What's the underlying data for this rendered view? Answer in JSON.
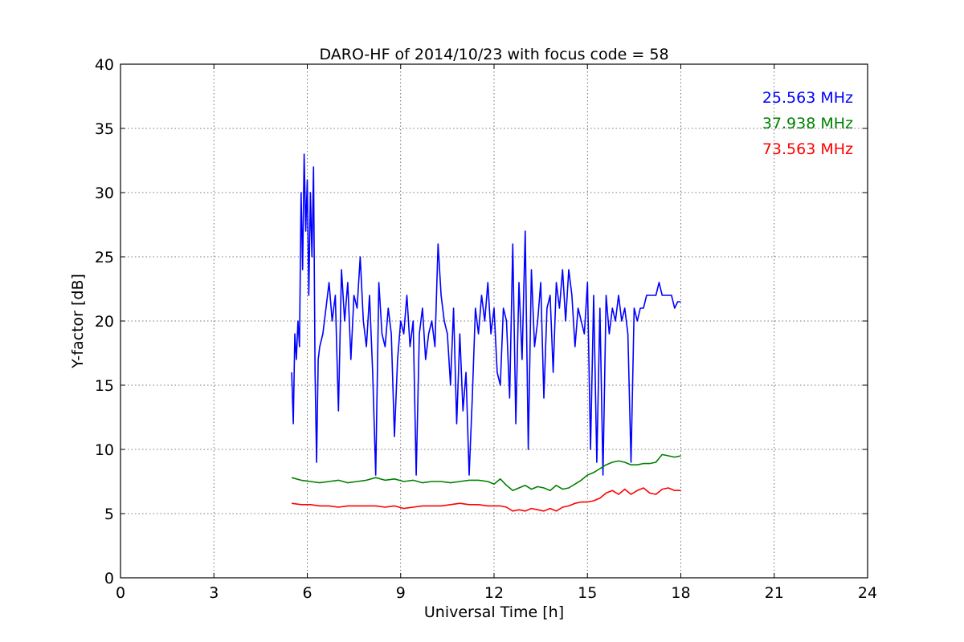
{
  "chart_data": {
    "type": "line",
    "title": "DARO-HF of 2014/10/23 with focus code = 58",
    "xlabel": "Universal Time [h]",
    "ylabel": "Y-factor [dB]",
    "xlim": [
      0,
      24
    ],
    "ylim": [
      0,
      40
    ],
    "xticks": [
      0,
      3,
      6,
      9,
      12,
      15,
      18,
      21,
      24
    ],
    "yticks": [
      0,
      5,
      10,
      15,
      20,
      25,
      30,
      35,
      40
    ],
    "grid": true,
    "legend_position": "top-right",
    "series": [
      {
        "name": "25.563 MHz",
        "color": "#0000ff",
        "x": [
          5.5,
          5.55,
          5.6,
          5.65,
          5.7,
          5.75,
          5.8,
          5.85,
          5.9,
          5.95,
          6.0,
          6.05,
          6.1,
          6.15,
          6.2,
          6.25,
          6.3,
          6.35,
          6.4,
          6.5,
          6.6,
          6.7,
          6.8,
          6.9,
          7.0,
          7.1,
          7.2,
          7.3,
          7.4,
          7.5,
          7.6,
          7.7,
          7.8,
          7.9,
          8.0,
          8.1,
          8.2,
          8.3,
          8.4,
          8.5,
          8.6,
          8.7,
          8.8,
          8.9,
          9.0,
          9.1,
          9.2,
          9.3,
          9.4,
          9.5,
          9.6,
          9.7,
          9.8,
          9.9,
          10.0,
          10.1,
          10.2,
          10.3,
          10.4,
          10.5,
          10.6,
          10.7,
          10.8,
          10.9,
          11.0,
          11.1,
          11.2,
          11.3,
          11.4,
          11.5,
          11.6,
          11.7,
          11.8,
          11.9,
          12.0,
          12.1,
          12.2,
          12.3,
          12.4,
          12.5,
          12.6,
          12.7,
          12.8,
          12.9,
          13.0,
          13.1,
          13.2,
          13.3,
          13.4,
          13.5,
          13.6,
          13.7,
          13.8,
          13.9,
          14.0,
          14.1,
          14.2,
          14.3,
          14.4,
          14.5,
          14.6,
          14.7,
          14.8,
          14.9,
          15.0,
          15.1,
          15.2,
          15.3,
          15.4,
          15.5,
          15.6,
          15.7,
          15.8,
          15.9,
          16.0,
          16.1,
          16.2,
          16.3,
          16.4,
          16.5,
          16.6,
          16.7,
          16.8,
          16.9,
          17.0,
          17.1,
          17.2,
          17.3,
          17.4,
          17.5,
          17.6,
          17.7,
          17.8,
          17.9,
          18.0
        ],
        "values": [
          16,
          12,
          19,
          17,
          20,
          18,
          30,
          24,
          33,
          27,
          31,
          22,
          30,
          25,
          32,
          16,
          9,
          17,
          18,
          19,
          21,
          23,
          20,
          22,
          13,
          24,
          20,
          23,
          17,
          22,
          21,
          25,
          20,
          18,
          22,
          16,
          8,
          23,
          19,
          18,
          21,
          19,
          11,
          17,
          20,
          19,
          22,
          18,
          20,
          8,
          19,
          21,
          17,
          19,
          20,
          18,
          26,
          22,
          20,
          19,
          15,
          21,
          12,
          19,
          13,
          16,
          8,
          14,
          21,
          19,
          22,
          20,
          23,
          19,
          21,
          16,
          15,
          21,
          20,
          14,
          26,
          12,
          23,
          17,
          27,
          10,
          24,
          18,
          20,
          23,
          14,
          21,
          22,
          16,
          23,
          21,
          24,
          20,
          24,
          22,
          18,
          21,
          20,
          19,
          23,
          10,
          22,
          9,
          21,
          8,
          22,
          19,
          21,
          20,
          22,
          20,
          21,
          19,
          9,
          21,
          20,
          21,
          21,
          22,
          22,
          22,
          22,
          23,
          22,
          22,
          22,
          22,
          21,
          21.5,
          21.5
        ]
      },
      {
        "name": "37.938 MHz",
        "color": "#008000",
        "x": [
          5.5,
          5.8,
          6.1,
          6.4,
          6.7,
          7.0,
          7.3,
          7.6,
          7.9,
          8.2,
          8.5,
          8.8,
          9.1,
          9.4,
          9.7,
          10.0,
          10.3,
          10.6,
          10.9,
          11.2,
          11.5,
          11.8,
          12.0,
          12.2,
          12.4,
          12.6,
          12.8,
          13.0,
          13.2,
          13.4,
          13.6,
          13.8,
          14.0,
          14.2,
          14.4,
          14.6,
          14.8,
          15.0,
          15.2,
          15.4,
          15.6,
          15.8,
          16.0,
          16.2,
          16.4,
          16.6,
          16.8,
          17.0,
          17.2,
          17.4,
          17.6,
          17.8,
          18.0
        ],
        "values": [
          7.8,
          7.6,
          7.5,
          7.4,
          7.5,
          7.6,
          7.4,
          7.5,
          7.6,
          7.8,
          7.6,
          7.7,
          7.5,
          7.6,
          7.4,
          7.5,
          7.5,
          7.4,
          7.5,
          7.6,
          7.6,
          7.5,
          7.3,
          7.7,
          7.2,
          6.8,
          7.0,
          7.2,
          6.9,
          7.1,
          7.0,
          6.8,
          7.2,
          6.9,
          7.0,
          7.3,
          7.6,
          8.0,
          8.2,
          8.5,
          8.8,
          9.0,
          9.1,
          9.0,
          8.8,
          8.8,
          8.9,
          8.9,
          9.0,
          9.6,
          9.5,
          9.4,
          9.5
        ]
      },
      {
        "name": "73.563 MHz",
        "color": "#ff0000",
        "x": [
          5.5,
          5.8,
          6.1,
          6.4,
          6.7,
          7.0,
          7.3,
          7.6,
          7.9,
          8.2,
          8.5,
          8.8,
          9.1,
          9.4,
          9.7,
          10.0,
          10.3,
          10.6,
          10.9,
          11.2,
          11.5,
          11.8,
          12.0,
          12.2,
          12.4,
          12.6,
          12.8,
          13.0,
          13.2,
          13.4,
          13.6,
          13.8,
          14.0,
          14.2,
          14.4,
          14.6,
          14.8,
          15.0,
          15.2,
          15.4,
          15.6,
          15.8,
          16.0,
          16.2,
          16.4,
          16.6,
          16.8,
          17.0,
          17.2,
          17.4,
          17.6,
          17.8,
          18.0
        ],
        "values": [
          5.8,
          5.7,
          5.7,
          5.6,
          5.6,
          5.5,
          5.6,
          5.6,
          5.6,
          5.6,
          5.5,
          5.6,
          5.4,
          5.5,
          5.6,
          5.6,
          5.6,
          5.7,
          5.8,
          5.7,
          5.7,
          5.6,
          5.6,
          5.6,
          5.5,
          5.2,
          5.3,
          5.2,
          5.4,
          5.3,
          5.2,
          5.4,
          5.2,
          5.5,
          5.6,
          5.8,
          5.9,
          5.9,
          6.0,
          6.2,
          6.6,
          6.8,
          6.5,
          6.9,
          6.5,
          6.8,
          7.0,
          6.6,
          6.5,
          6.9,
          7.0,
          6.8,
          6.8
        ]
      }
    ]
  }
}
